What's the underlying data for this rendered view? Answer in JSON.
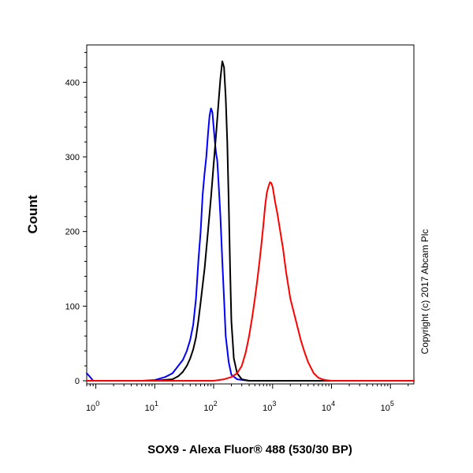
{
  "chart_data": {
    "type": "line",
    "title": "",
    "xlabel": "SOX9 - Alexa Fluor® 488 (530/30 BP)",
    "ylabel": "Count",
    "x_scale": "log",
    "xlim": [
      0.7,
      250000
    ],
    "ylim": [
      0,
      450
    ],
    "x_ticks": [
      {
        "value": 1,
        "base": "10",
        "exp": "0"
      },
      {
        "value": 10,
        "base": "10",
        "exp": "1"
      },
      {
        "value": 100,
        "base": "10",
        "exp": "2"
      },
      {
        "value": 1000,
        "base": "10",
        "exp": "3"
      },
      {
        "value": 10000,
        "base": "10",
        "exp": "4"
      },
      {
        "value": 100000,
        "base": "10",
        "exp": "5"
      }
    ],
    "y_ticks": [
      0,
      100,
      200,
      300,
      400
    ],
    "grid": false,
    "series": [
      {
        "color": "#0000ff",
        "x": [
          0.7,
          0.78,
          0.9,
          1.2,
          3,
          6,
          10,
          15,
          20,
          25,
          30,
          35,
          40,
          45,
          50,
          55,
          60,
          65,
          70,
          75,
          80,
          85,
          90,
          95,
          100,
          105,
          110,
          115,
          120,
          130,
          140,
          150,
          160,
          180,
          200,
          250,
          400,
          1000,
          250000
        ],
        "y": [
          10,
          6,
          0,
          0,
          0,
          0,
          1,
          5,
          10,
          20,
          28,
          40,
          55,
          75,
          110,
          160,
          200,
          250,
          278,
          300,
          330,
          355,
          365,
          360,
          340,
          320,
          305,
          295,
          270,
          220,
          160,
          110,
          60,
          25,
          8,
          2,
          0,
          0,
          0
        ]
      },
      {
        "color": "#000000",
        "x": [
          0.7,
          10,
          20,
          25,
          30,
          35,
          40,
          45,
          50,
          55,
          60,
          70,
          80,
          90,
          100,
          110,
          120,
          130,
          140,
          150,
          160,
          170,
          180,
          190,
          200,
          220,
          250,
          300,
          400,
          1000,
          250000
        ],
        "y": [
          0,
          0,
          2,
          6,
          12,
          20,
          30,
          42,
          58,
          80,
          105,
          150,
          200,
          245,
          290,
          330,
          370,
          405,
          428,
          420,
          380,
          320,
          240,
          150,
          80,
          30,
          10,
          2,
          0,
          0,
          0
        ]
      },
      {
        "color": "#ff0000",
        "x": [
          0.7,
          100,
          150,
          200,
          250,
          300,
          350,
          400,
          450,
          500,
          550,
          600,
          650,
          700,
          750,
          800,
          850,
          900,
          950,
          1000,
          1050,
          1100,
          1200,
          1300,
          1400,
          1500,
          1700,
          2000,
          2500,
          3000,
          3500,
          4000,
          5000,
          6000,
          7000,
          8000,
          10000,
          250000
        ],
        "y": [
          0,
          0,
          2,
          5,
          10,
          20,
          38,
          60,
          85,
          110,
          135,
          160,
          185,
          210,
          235,
          252,
          260,
          266,
          265,
          260,
          250,
          240,
          225,
          208,
          192,
          178,
          145,
          110,
          80,
          55,
          38,
          25,
          10,
          4,
          2,
          1,
          0,
          0
        ]
      }
    ]
  },
  "copyright": "Copyright (c) 2017 Abcam Plc"
}
